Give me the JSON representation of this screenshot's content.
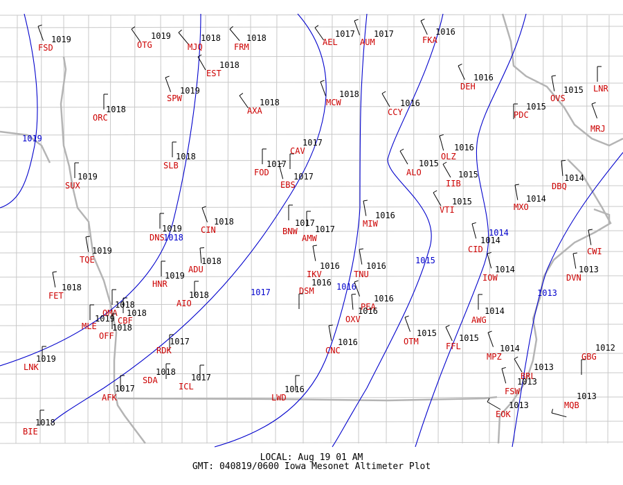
{
  "footer": {
    "local": "LOCAL: Aug 19 01 AM",
    "gmt": "GMT: 040819/0600 Iowa Mesonet Altimeter Plot"
  },
  "colors": {
    "station_id": "#cc0000",
    "isobar": "#0000cc",
    "value": "#000000",
    "county": "#c8c8c8",
    "state": "#b4b4b4"
  },
  "isobars": [
    {
      "label": "1019"
    },
    {
      "label": "1018"
    },
    {
      "label": "1017"
    },
    {
      "label": "1016"
    },
    {
      "label": "1015"
    },
    {
      "label": "1014"
    },
    {
      "label": "1013"
    }
  ],
  "stations": [
    {
      "id": "FSD",
      "value": "1019"
    },
    {
      "id": "OTG",
      "value": "1019"
    },
    {
      "id": "MJQ",
      "value": "1018"
    },
    {
      "id": "FRM",
      "value": "1018"
    },
    {
      "id": "AEL",
      "value": "1017"
    },
    {
      "id": "AUM",
      "value": "1017"
    },
    {
      "id": "FKA",
      "value": "1016"
    },
    {
      "id": "EST",
      "value": "1018"
    },
    {
      "id": "DEH",
      "value": "1016"
    },
    {
      "id": "SPW",
      "value": "1019"
    },
    {
      "id": "MCW",
      "value": "1018"
    },
    {
      "id": "OVS",
      "value": "1015"
    },
    {
      "id": "LNR",
      "value": ""
    },
    {
      "id": "ORC",
      "value": "1018"
    },
    {
      "id": "AXA",
      "value": "1018"
    },
    {
      "id": "CCY",
      "value": "1016"
    },
    {
      "id": "PDC",
      "value": "1015"
    },
    {
      "id": "MRJ",
      "value": ""
    },
    {
      "id": "CAV",
      "value": "1017"
    },
    {
      "id": "SLB",
      "value": "1018"
    },
    {
      "id": "OLZ",
      "value": "1016"
    },
    {
      "id": "FOD",
      "value": "1017"
    },
    {
      "id": "ALO",
      "value": "1015"
    },
    {
      "id": "SUX",
      "value": "1019"
    },
    {
      "id": "EBS",
      "value": "1017"
    },
    {
      "id": "IIB",
      "value": "1015"
    },
    {
      "id": "DBQ",
      "value": "1014"
    },
    {
      "id": "VTI",
      "value": "1015"
    },
    {
      "id": "MXO",
      "value": "1014"
    },
    {
      "id": "MIW",
      "value": "1016"
    },
    {
      "id": "DNS",
      "value": "1019"
    },
    {
      "id": "CIN",
      "value": "1018"
    },
    {
      "id": "BNW",
      "value": "1017"
    },
    {
      "id": "AMW",
      "value": "1017"
    },
    {
      "id": "CID",
      "value": "1014"
    },
    {
      "id": "CWI",
      "value": ""
    },
    {
      "id": "TQE",
      "value": "1019"
    },
    {
      "id": "ADU",
      "value": "1018"
    },
    {
      "id": "IKV",
      "value": "1016"
    },
    {
      "id": "TNU",
      "value": "1016"
    },
    {
      "id": "IOW",
      "value": "1014"
    },
    {
      "id": "DVN",
      "value": "1013"
    },
    {
      "id": "HNR",
      "value": "1019"
    },
    {
      "id": "DSM",
      "value": "1016"
    },
    {
      "id": "FET",
      "value": "1018"
    },
    {
      "id": "AIO",
      "value": "1018"
    },
    {
      "id": "PEA",
      "value": "1016"
    },
    {
      "id": "OMA",
      "value": "1018"
    },
    {
      "id": "CBF",
      "value": "1018"
    },
    {
      "id": "OXV",
      "value": "1016"
    },
    {
      "id": "AWG",
      "value": "1014"
    },
    {
      "id": "MLE",
      "value": "1019"
    },
    {
      "id": "OFF",
      "value": "1018"
    },
    {
      "id": "OTM",
      "value": "1015"
    },
    {
      "id": "FFL",
      "value": "1015"
    },
    {
      "id": "RDK",
      "value": "1017"
    },
    {
      "id": "CNC",
      "value": "1016"
    },
    {
      "id": "MPZ",
      "value": "1014"
    },
    {
      "id": "GBG",
      "value": "1012"
    },
    {
      "id": "LNK",
      "value": "1019"
    },
    {
      "id": "BRL",
      "value": "1013"
    },
    {
      "id": "SDA",
      "value": "1018"
    },
    {
      "id": "ICL",
      "value": "1017"
    },
    {
      "id": "FSW",
      "value": "1013"
    },
    {
      "id": "AFK",
      "value": "1017"
    },
    {
      "id": "LWD",
      "value": "1016"
    },
    {
      "id": "MQB",
      "value": "1013"
    },
    {
      "id": "EOK",
      "value": "1013"
    },
    {
      "id": "BIE",
      "value": "1018"
    }
  ]
}
